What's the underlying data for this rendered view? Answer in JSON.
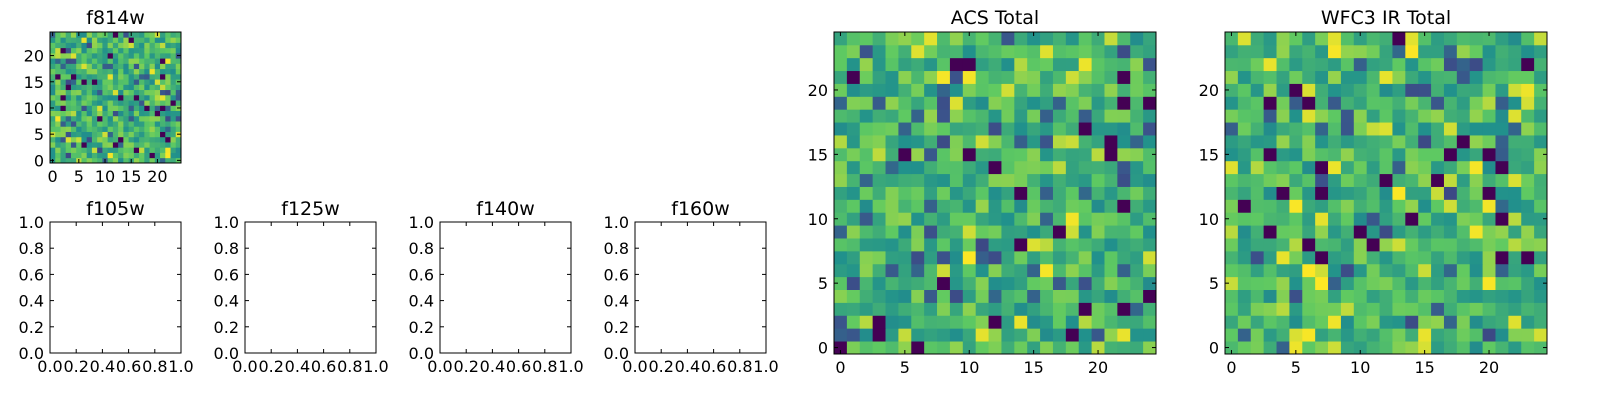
{
  "colormap": [
    "#440154",
    "#3b528b",
    "#21918c",
    "#5ec962",
    "#fde725"
  ],
  "chart_data": [
    {
      "id": "f814w",
      "type": "heatmap",
      "title": "f814w",
      "rows": 25,
      "cols": 25,
      "xlim": [
        -0.5,
        24.5
      ],
      "ylim": [
        -0.5,
        24.5
      ],
      "xticks": [
        0,
        5,
        10,
        15,
        20
      ],
      "xtick_labels": [
        "0",
        "5",
        "10",
        "15",
        "20"
      ],
      "yticks": [
        0,
        5,
        10,
        15,
        20
      ],
      "ytick_labels": [
        "0",
        "5",
        "10",
        "15",
        "20"
      ],
      "seed": 814
    },
    {
      "id": "f105w",
      "type": "empty",
      "title": "f105w",
      "xlim": [
        0,
        1
      ],
      "ylim": [
        0,
        1
      ],
      "xtick_labels": [
        "0.0",
        "0.2",
        "0.4",
        "0.6",
        "0.8",
        "1.0"
      ],
      "ytick_labels": [
        "0.0",
        "0.2",
        "0.4",
        "0.6",
        "0.8",
        "1.0"
      ]
    },
    {
      "id": "f125w",
      "type": "empty",
      "title": "f125w",
      "xlim": [
        0,
        1
      ],
      "ylim": [
        0,
        1
      ],
      "xtick_labels": [
        "0.0",
        "0.2",
        "0.4",
        "0.6",
        "0.8",
        "1.0"
      ],
      "ytick_labels": [
        "0.0",
        "0.2",
        "0.4",
        "0.6",
        "0.8",
        "1.0"
      ]
    },
    {
      "id": "f140w",
      "type": "empty",
      "title": "f140w",
      "xlim": [
        0,
        1
      ],
      "ylim": [
        0,
        1
      ],
      "xtick_labels": [
        "0.0",
        "0.2",
        "0.4",
        "0.6",
        "0.8",
        "1.0"
      ],
      "ytick_labels": [
        "0.0",
        "0.2",
        "0.4",
        "0.6",
        "0.8",
        "1.0"
      ]
    },
    {
      "id": "f160w",
      "type": "empty",
      "title": "f160w",
      "xlim": [
        0,
        1
      ],
      "ylim": [
        0,
        1
      ],
      "xtick_labels": [
        "0.0",
        "0.2",
        "0.4",
        "0.6",
        "0.8",
        "1.0"
      ],
      "ytick_labels": [
        "0.0",
        "0.2",
        "0.4",
        "0.6",
        "0.8",
        "1.0"
      ]
    },
    {
      "id": "acs-total",
      "type": "heatmap",
      "title": "ACS Total",
      "rows": 25,
      "cols": 25,
      "xlim": [
        -0.5,
        24.5
      ],
      "ylim": [
        -0.5,
        24.5
      ],
      "xticks": [
        0,
        5,
        10,
        15,
        20
      ],
      "xtick_labels": [
        "0",
        "5",
        "10",
        "15",
        "20"
      ],
      "yticks": [
        0,
        5,
        10,
        15,
        20
      ],
      "ytick_labels": [
        "0",
        "5",
        "10",
        "15",
        "20"
      ],
      "seed": 2017
    },
    {
      "id": "wfc3-ir-total",
      "type": "heatmap",
      "title": "WFC3 IR Total",
      "rows": 25,
      "cols": 25,
      "xlim": [
        -0.5,
        24.5
      ],
      "ylim": [
        -0.5,
        24.5
      ],
      "xticks": [
        0,
        5,
        10,
        15,
        20
      ],
      "xtick_labels": [
        "0",
        "5",
        "10",
        "15",
        "20"
      ],
      "yticks": [
        0,
        5,
        10,
        15,
        20
      ],
      "ytick_labels": [
        "0",
        "5",
        "10",
        "15",
        "20"
      ],
      "seed": 3
    }
  ]
}
